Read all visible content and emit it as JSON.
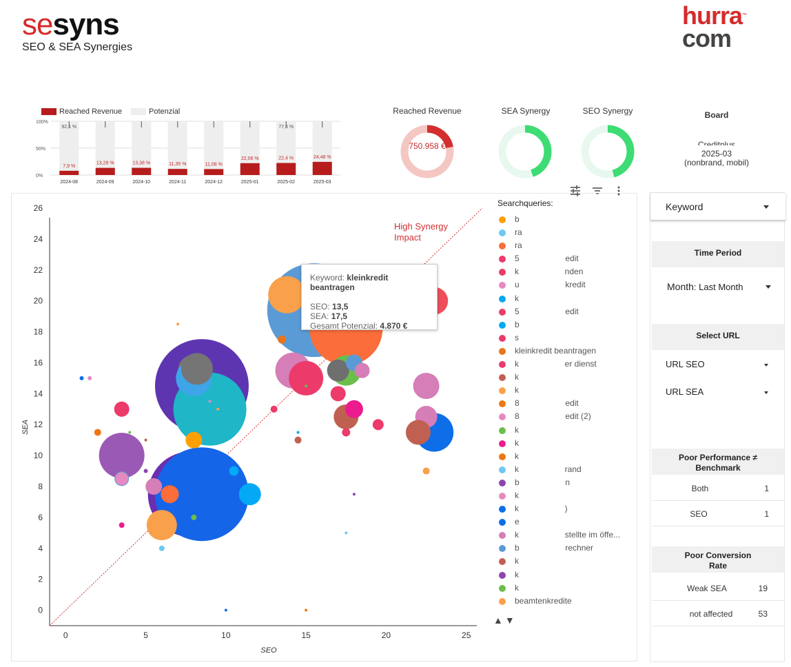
{
  "brand_left": {
    "part1": "se",
    "part2": "syns",
    "subtitle": "SEO & SEA Synergies"
  },
  "brand_right": {
    "line1": "hurra",
    "line2": "com",
    "tm": "™"
  },
  "revenue_chart": {
    "legend": {
      "reached": "Reached Revenue",
      "potential": "Potenzial"
    },
    "y_ticks": [
      "100%",
      "50%",
      "0%"
    ],
    "months": [
      "2024-08",
      "2024-09",
      "2024-10",
      "2024-11",
      "2024-12",
      "2025-01",
      "2025-02",
      "2025-03"
    ],
    "reached_pct": [
      7.9,
      13.28,
      13.38,
      11.35,
      11.08,
      22.06,
      22.4,
      24.48
    ],
    "reached_labels": [
      "7,9 %",
      "13,28 %",
      "13,38 %",
      "11,35 %",
      "11,08 %",
      "22,06 %",
      "22,4 %",
      "24,48 %"
    ],
    "potential_labels": [
      "92,1 %",
      "",
      "",
      "",
      "",
      "",
      "77,6 %",
      ""
    ],
    "colors": {
      "reached": "#b71c1c",
      "potential": "#eeeeee"
    }
  },
  "kpis": {
    "reached_revenue": {
      "title": "Reached Revenue",
      "value": "750.958 €",
      "fraction": 0.22,
      "color": "#d32f2f",
      "track": "#f4c7c3"
    },
    "sea_synergy": {
      "title": "SEA Synergy",
      "fraction": 0.45,
      "color": "#3ddc74",
      "track": "#e8f8ee"
    },
    "seo_synergy": {
      "title": "SEO Synergy",
      "fraction": 0.46,
      "color": "#3ddc74",
      "track": "#e8f8ee"
    }
  },
  "board": {
    "title": "Board",
    "line1": "Creditplus",
    "line2": "2025-03",
    "line3": "(nonbrand, mobil)"
  },
  "chart_data": {
    "type": "scatter",
    "xlabel": "SEO",
    "ylabel": "SEA",
    "xlim": [
      -1,
      26
    ],
    "ylim": [
      -1,
      26
    ],
    "x_ticks": [
      "0",
      "5",
      "10",
      "15",
      "20",
      "25"
    ],
    "y_ticks": [
      "0",
      "2",
      "4",
      "6",
      "8",
      "10",
      "12",
      "14",
      "16",
      "18",
      "20",
      "22",
      "24",
      "26"
    ],
    "annotation": "High Synergy Impact",
    "points": [
      {
        "x": 8.5,
        "y": 14.5,
        "r": 68,
        "c": "#5e35b1"
      },
      {
        "x": 7.8,
        "y": 7.5,
        "r": 62,
        "c": "#6a2fb0"
      },
      {
        "x": 8.5,
        "y": 7.5,
        "r": 68,
        "c": "#1565e8"
      },
      {
        "x": 15.5,
        "y": 19.4,
        "r": 68,
        "c": "#5b9bd5"
      },
      {
        "x": 9.0,
        "y": 13.0,
        "r": 53,
        "c": "#1fb6c8"
      },
      {
        "x": 17.5,
        "y": 18.2,
        "r": 53,
        "c": "#fb6d3a"
      },
      {
        "x": 13.8,
        "y": 20.4,
        "r": 27,
        "c": "#f9a04a"
      },
      {
        "x": 3.5,
        "y": 10.0,
        "r": 33,
        "c": "#9b59b6"
      },
      {
        "x": 8.0,
        "y": 15.5,
        "r": 23,
        "c": "#767676"
      },
      {
        "x": 8.0,
        "y": 15.0,
        "r": 26,
        "c": "#3ea5e8"
      },
      {
        "x": 8.2,
        "y": 15.6,
        "r": 23,
        "c": "#757575"
      },
      {
        "x": 23.0,
        "y": 11.5,
        "r": 28,
        "c": "#0d6ee8"
      },
      {
        "x": 22.5,
        "y": 14.5,
        "r": 19,
        "c": "#d67eb8"
      },
      {
        "x": 22.5,
        "y": 12.5,
        "r": 16,
        "c": "#d67eb8"
      },
      {
        "x": 22.0,
        "y": 11.5,
        "r": 18,
        "c": "#c06050"
      },
      {
        "x": 23.0,
        "y": 20.0,
        "r": 20,
        "c": "#ec4f5b"
      },
      {
        "x": 22.0,
        "y": 19.0,
        "r": 14,
        "c": "#ec1c8f"
      },
      {
        "x": 14.2,
        "y": 15.5,
        "r": 26,
        "c": "#d67eb8"
      },
      {
        "x": 15.0,
        "y": 15.0,
        "r": 25,
        "c": "#ec3b6a"
      },
      {
        "x": 17.5,
        "y": 15.5,
        "r": 22,
        "c": "#6abf4b"
      },
      {
        "x": 17.5,
        "y": 12.5,
        "r": 18,
        "c": "#c06050"
      },
      {
        "x": 18.0,
        "y": 13.0,
        "r": 13,
        "c": "#ec1c8f"
      },
      {
        "x": 17.0,
        "y": 14.0,
        "r": 11,
        "c": "#ec3b6a"
      },
      {
        "x": 17.0,
        "y": 15.5,
        "r": 16,
        "c": "#6f6f6f"
      },
      {
        "x": 18.0,
        "y": 16.0,
        "r": 12,
        "c": "#5b9bd5"
      },
      {
        "x": 18.5,
        "y": 15.5,
        "r": 11,
        "c": "#d67eb8"
      },
      {
        "x": 6.0,
        "y": 5.5,
        "r": 22,
        "c": "#f9a04a"
      },
      {
        "x": 6.5,
        "y": 7.5,
        "r": 13,
        "c": "#fb6d3a"
      },
      {
        "x": 5.5,
        "y": 8.0,
        "r": 12,
        "c": "#d67eb8"
      },
      {
        "x": 11.5,
        "y": 7.5,
        "r": 16,
        "c": "#03a9f4"
      },
      {
        "x": 10.5,
        "y": 9.0,
        "r": 7,
        "c": "#03a9f4"
      },
      {
        "x": 8.0,
        "y": 11.0,
        "r": 12,
        "c": "#ffa000"
      },
      {
        "x": 3.5,
        "y": 13.0,
        "r": 11,
        "c": "#ec3b6a"
      },
      {
        "x": 3.5,
        "y": 8.5,
        "r": 10,
        "c": "#e48ac0"
      },
      {
        "x": 19.5,
        "y": 12.0,
        "r": 8,
        "c": "#ec3b6a"
      },
      {
        "x": 13.5,
        "y": 17.5,
        "r": 6,
        "c": "#e8751c"
      },
      {
        "x": 16.5,
        "y": 18.5,
        "r": 8,
        "c": "#03a9f4"
      },
      {
        "x": 13.0,
        "y": 13.0,
        "r": 5,
        "c": "#ec3b6a"
      },
      {
        "x": 2.0,
        "y": 11.5,
        "r": 5,
        "c": "#ee7613"
      },
      {
        "x": 14.5,
        "y": 11.0,
        "r": 5,
        "c": "#c06050"
      },
      {
        "x": 22.5,
        "y": 9.0,
        "r": 5,
        "c": "#f9a04a"
      },
      {
        "x": 17.5,
        "y": 11.5,
        "r": 6,
        "c": "#ec3b6a"
      },
      {
        "x": 3.5,
        "y": 5.5,
        "r": 4,
        "c": "#ec1c8f"
      },
      {
        "x": 8.0,
        "y": 6.0,
        "r": 4,
        "c": "#6abf4b"
      },
      {
        "x": 6.0,
        "y": 4.0,
        "r": 4,
        "c": "#6ec8f2"
      },
      {
        "x": 1.0,
        "y": 15.0,
        "r": 3,
        "c": "#0d6ee8"
      },
      {
        "x": 1.5,
        "y": 15.0,
        "r": 3,
        "c": "#e48ac0"
      },
      {
        "x": 7.0,
        "y": 18.5,
        "r": 2,
        "c": "#f9a04a"
      },
      {
        "x": 10.0,
        "y": 0.0,
        "r": 2,
        "c": "#0d6ee8"
      },
      {
        "x": 15.0,
        "y": 0.0,
        "r": 2,
        "c": "#ee7613"
      },
      {
        "x": 17.5,
        "y": 5.0,
        "r": 2,
        "c": "#6ec8f2"
      },
      {
        "x": 18.0,
        "y": 7.5,
        "r": 2,
        "c": "#8e44ad"
      },
      {
        "x": 5.0,
        "y": 11.0,
        "r": 2,
        "c": "#c06050"
      },
      {
        "x": 9.0,
        "y": 13.5,
        "r": 2,
        "c": "#e48ac0"
      },
      {
        "x": 4.0,
        "y": 11.5,
        "r": 2,
        "c": "#6abf4b"
      },
      {
        "x": 5.0,
        "y": 9.0,
        "r": 3,
        "c": "#8e44ad"
      },
      {
        "x": 9.5,
        "y": 13.0,
        "r": 2,
        "c": "#f9a04a"
      },
      {
        "x": 15.0,
        "y": 14.5,
        "r": 2,
        "c": "#6abf4b"
      },
      {
        "x": 14.5,
        "y": 11.5,
        "r": 2,
        "c": "#03a9f4"
      }
    ]
  },
  "tooltip": {
    "kw_label": "Keyword:",
    "kw_value": "kleinkredit beantragen",
    "seo_label": "SEO:",
    "seo_value": "13,5",
    "sea_label": "SEA:",
    "sea_value": "17,5",
    "pot_label": "Gesamt Potenzial:",
    "pot_value": "4.870 €"
  },
  "legend": {
    "title": "Searchqueries:",
    "items": [
      {
        "label": "b",
        "color": "#ffa000"
      },
      {
        "label": "ra",
        "color": "#6ec8f2"
      },
      {
        "label": "ra",
        "color": "#fb6d3a"
      },
      {
        "label": "5                    edit",
        "color": "#ec3b6a"
      },
      {
        "label": "k                    nden",
        "color": "#ec3b6a"
      },
      {
        "label": "u                    kredit",
        "color": "#e48ac0"
      },
      {
        "label": "k",
        "color": "#03a9f4"
      },
      {
        "label": "5                    edit",
        "color": "#ec3b6a"
      },
      {
        "label": "b",
        "color": "#03a9f4"
      },
      {
        "label": "s",
        "color": "#ec3b6a"
      },
      {
        "label": "kleinkredit beantragen",
        "color": "#e8751c"
      },
      {
        "label": "k                    er dienst",
        "color": "#ec3b6a"
      },
      {
        "label": "k",
        "color": "#c06050"
      },
      {
        "label": "k",
        "color": "#f9a04a"
      },
      {
        "label": "8                    edit",
        "color": "#ee7613"
      },
      {
        "label": "8                    edit (2)",
        "color": "#e48ac0"
      },
      {
        "label": "k",
        "color": "#6abf4b"
      },
      {
        "label": "k",
        "color": "#ec1c8f"
      },
      {
        "label": "k",
        "color": "#ee7613"
      },
      {
        "label": "k                    rand",
        "color": "#6ec8f2"
      },
      {
        "label": "b                    n",
        "color": "#8e44ad"
      },
      {
        "label": "k",
        "color": "#e48ac0"
      },
      {
        "label": "k                    )",
        "color": "#0d6ee8"
      },
      {
        "label": "e",
        "color": "#0d6ee8"
      },
      {
        "label": "k                    stellte im öffe...",
        "color": "#d67eb8"
      },
      {
        "label": "b                    rechner",
        "color": "#5b9bd5"
      },
      {
        "label": "k",
        "color": "#c06050"
      },
      {
        "label": "k",
        "color": "#8e44ad"
      },
      {
        "label": "k",
        "color": "#6abf4b"
      },
      {
        "label": "beamtenkredite",
        "color": "#f9a04a"
      }
    ]
  },
  "sidebar": {
    "keyword": "Keyword",
    "time_period": {
      "title": "Time Period",
      "label": "Month",
      "value": ": Last Month"
    },
    "select_url": {
      "title": "Select URL",
      "seo": "URL SEO",
      "sea": "URL SEA"
    },
    "poor_perf": {
      "title1": "Poor Performance ≠",
      "title2": "Benchmark",
      "rows": [
        {
          "k": "Both",
          "v": "1"
        },
        {
          "k": "SEO",
          "v": "1"
        }
      ]
    },
    "poor_conv": {
      "title1": "Poor Conversion",
      "title2": "Rate",
      "rows": [
        {
          "k": "Weak SEA",
          "v": "19"
        },
        {
          "k": "not affected",
          "v": "53"
        }
      ]
    }
  }
}
